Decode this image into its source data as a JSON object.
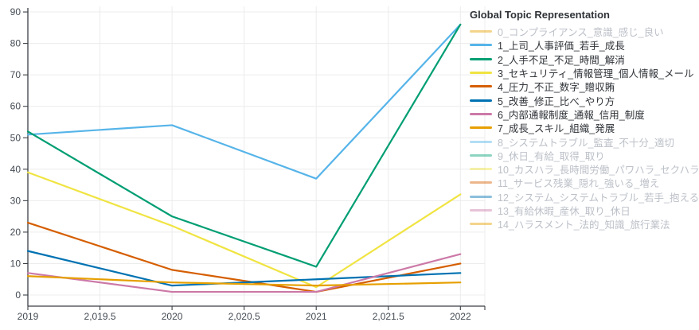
{
  "legend": {
    "title": "Global Topic Representation"
  },
  "colors": {
    "background": "#ffffff",
    "grid": "#ececec",
    "axis": "#3b3f45",
    "tick_label": "#444b54",
    "legend_text": "#2f3338",
    "legend_text_disabled": "#bcc0c8"
  },
  "chart_data": {
    "type": "line",
    "title": "",
    "legend_title": "Global Topic Representation",
    "legend_position": "right",
    "grid": true,
    "x": [
      2019,
      2020,
      2021,
      2022
    ],
    "xlim": [
      2019,
      2022
    ],
    "ylim": [
      0,
      90
    ],
    "xtick_values": [
      2019,
      2019.5,
      2020,
      2020.5,
      2021,
      2021.5,
      2022
    ],
    "xtick_labels": [
      "2019",
      "2,019.5",
      "2020",
      "2,020.5",
      "2021",
      "2,021.5",
      "2022"
    ],
    "ytick_values": [
      0,
      10,
      20,
      30,
      40,
      50,
      60,
      70,
      80,
      90
    ],
    "series": [
      {
        "name": "0_コンプライアンス_意識_感じ_良い",
        "color": "#E69F00",
        "visible": false,
        "values": null
      },
      {
        "name": "1_上司_人事評価_若手_成長",
        "color": "#56B4E9",
        "visible": true,
        "values": [
          51,
          54,
          37,
          86
        ]
      },
      {
        "name": "2_人手不足_不足_時間_解消",
        "color": "#009E73",
        "visible": true,
        "values": [
          52,
          25,
          9,
          86
        ]
      },
      {
        "name": "3_セキュリティ_情報管理_個人情報_メール",
        "color": "#F0E442",
        "visible": true,
        "values": [
          39,
          22,
          2.5,
          32
        ]
      },
      {
        "name": "4_圧力_不正_数字_贈収賄",
        "color": "#D55E00",
        "visible": true,
        "values": [
          23,
          8,
          1,
          10
        ]
      },
      {
        "name": "5_改善_修正_比べ_やり方",
        "color": "#0072B2",
        "visible": true,
        "values": [
          14,
          3,
          5,
          7
        ]
      },
      {
        "name": "6_内部通報制度_通報_信用_制度",
        "color": "#CC79A7",
        "visible": true,
        "values": [
          7,
          1,
          1,
          13
        ]
      },
      {
        "name": "7_成長_スキル_組織_発展",
        "color": "#E69F00",
        "visible": true,
        "values": [
          6,
          4,
          3,
          4
        ]
      },
      {
        "name": "8_システムトラブル_監査_不十分_適切",
        "color": "#56B4E9",
        "visible": false,
        "values": null
      },
      {
        "name": "9_休日_有給_取得_取り",
        "color": "#009E73",
        "visible": false,
        "values": null
      },
      {
        "name": "10_カスハラ_長時間労働_パワハラ_セクハラ",
        "color": "#F0E442",
        "visible": false,
        "values": null
      },
      {
        "name": "11_サービス残業_隠れ_強いる_増え",
        "color": "#D55E00",
        "visible": false,
        "values": null
      },
      {
        "name": "12_システム_システムトラブル_若手_抱える",
        "color": "#0072B2",
        "visible": false,
        "values": null
      },
      {
        "name": "13_有給休暇_産休_取り_休日",
        "color": "#CC79A7",
        "visible": false,
        "values": null
      },
      {
        "name": "14_ハラスメント_法的_知識_旅行業法",
        "color": "#E69F00",
        "visible": false,
        "values": null
      }
    ]
  }
}
